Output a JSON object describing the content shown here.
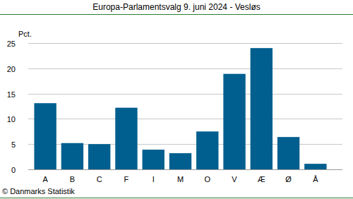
{
  "chart_data": {
    "type": "bar",
    "title": "Europa-Parlamentsvalg 9. juni 2024 - Vesløs",
    "y_label": "Pct.",
    "source": "© Danmarks Statistik",
    "categories": [
      "A",
      "B",
      "C",
      "F",
      "I",
      "M",
      "O",
      "V",
      "Æ",
      "Ø",
      "Å"
    ],
    "values": [
      13.1,
      5.2,
      5.0,
      12.2,
      3.9,
      3.2,
      7.5,
      18.9,
      24.0,
      6.4,
      1.1
    ],
    "color": "#005f8f",
    "ylim": [
      0,
      25
    ],
    "yticks": [
      0,
      5,
      10,
      15,
      20,
      25
    ],
    "grid": true
  }
}
